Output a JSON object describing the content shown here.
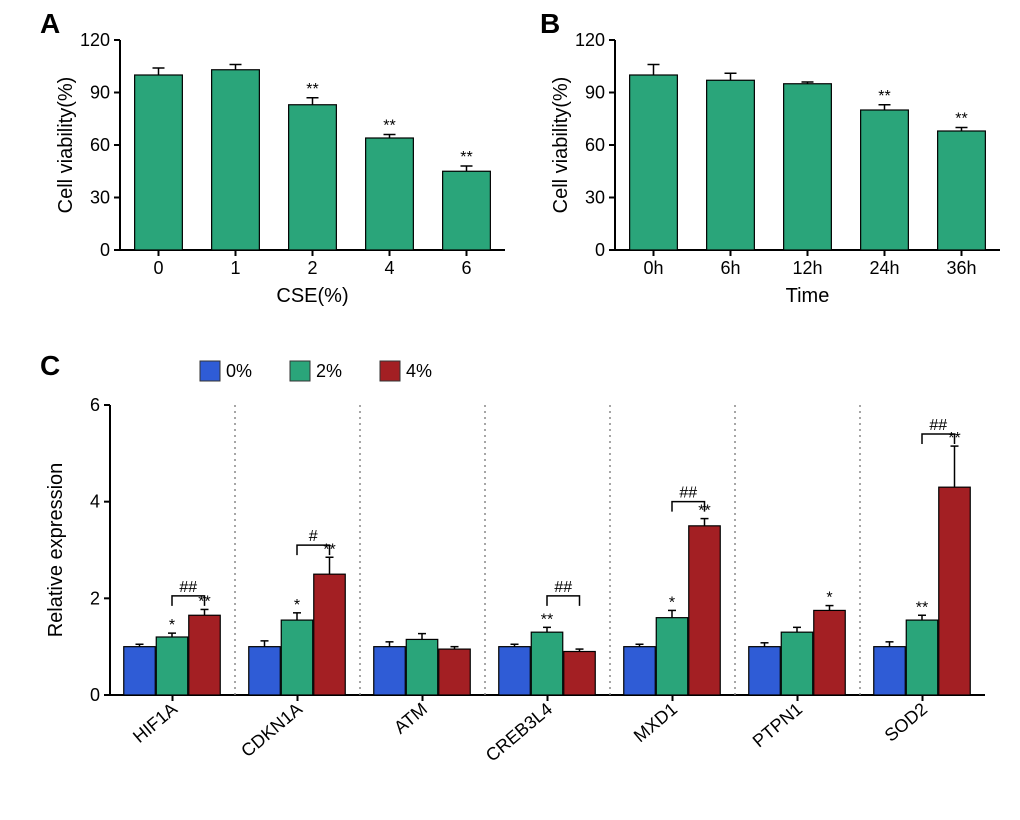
{
  "panelA": {
    "label": "A",
    "type": "bar",
    "ylabel": "Cell viability(%)",
    "xlabel": "CSE(%)",
    "ylim": [
      0,
      120
    ],
    "ytick_step": 30,
    "categories": [
      "0",
      "1",
      "2",
      "4",
      "6"
    ],
    "values": [
      100,
      103,
      83,
      64,
      45
    ],
    "errors": [
      4,
      3,
      4,
      2,
      3
    ],
    "bar_color": "#2aa57a",
    "bar_width": 0.62,
    "annotations": [
      "",
      "",
      "**",
      "**",
      "**"
    ],
    "label_fontsize": 20,
    "tick_fontsize": 18
  },
  "panelB": {
    "label": "B",
    "type": "bar",
    "ylabel": "Cell viability(%)",
    "xlabel": "Time",
    "ylim": [
      0,
      120
    ],
    "ytick_step": 30,
    "categories": [
      "0h",
      "6h",
      "12h",
      "24h",
      "36h"
    ],
    "values": [
      100,
      97,
      95,
      80,
      68
    ],
    "errors": [
      6,
      4,
      1,
      3,
      2
    ],
    "bar_color": "#2aa57a",
    "bar_width": 0.62,
    "annotations": [
      "",
      "",
      "",
      "**",
      "**"
    ],
    "label_fontsize": 20,
    "tick_fontsize": 18
  },
  "panelC": {
    "label": "C",
    "type": "grouped-bar",
    "ylabel": "Relative expression",
    "ylim": [
      0,
      6
    ],
    "ytick_step": 2,
    "groups": [
      "HIF1A",
      "CDKN1A",
      "ATM",
      "CREB3L4",
      "MXD1",
      "PTPN1",
      "SOD2"
    ],
    "series": [
      {
        "name": "0%",
        "color": "#2f5cd6"
      },
      {
        "name": "2%",
        "color": "#2aa57a"
      },
      {
        "name": "4%",
        "color": "#a31f23"
      }
    ],
    "legend_labels": [
      "0%",
      "2%",
      "4%"
    ],
    "data": {
      "HIF1A": {
        "vals": [
          1.0,
          1.2,
          1.65
        ],
        "errs": [
          0.05,
          0.08,
          0.12
        ],
        "annots": [
          "",
          "*",
          "**"
        ],
        "bracket": {
          "from": 1,
          "to": 2,
          "label": "##",
          "y": 2.05
        }
      },
      "CDKN1A": {
        "vals": [
          1.0,
          1.55,
          2.5
        ],
        "errs": [
          0.12,
          0.15,
          0.35
        ],
        "annots": [
          "",
          "*",
          "**"
        ],
        "bracket": {
          "from": 1,
          "to": 2,
          "label": "#",
          "y": 3.1
        }
      },
      "ATM": {
        "vals": [
          1.0,
          1.15,
          0.95
        ],
        "errs": [
          0.1,
          0.12,
          0.05
        ],
        "annots": [
          "",
          "",
          ""
        ]
      },
      "CREB3L4": {
        "vals": [
          1.0,
          1.3,
          0.9
        ],
        "errs": [
          0.05,
          0.1,
          0.05
        ],
        "annots": [
          "",
          "**",
          ""
        ],
        "bracket": {
          "from": 1,
          "to": 2,
          "label": "##",
          "y": 2.05
        }
      },
      "MXD1": {
        "vals": [
          1.0,
          1.6,
          3.5
        ],
        "errs": [
          0.05,
          0.15,
          0.15
        ],
        "annots": [
          "",
          "*",
          "**"
        ],
        "bracket": {
          "from": 1,
          "to": 2,
          "label": "##",
          "y": 4.0
        }
      },
      "PTPN1": {
        "vals": [
          1.0,
          1.3,
          1.75
        ],
        "errs": [
          0.08,
          0.1,
          0.1
        ],
        "annots": [
          "",
          "",
          "*"
        ]
      },
      "SOD2": {
        "vals": [
          1.0,
          1.55,
          4.3
        ],
        "errs": [
          0.1,
          0.1,
          0.85
        ],
        "annots": [
          "",
          "**",
          "**"
        ],
        "bracket": {
          "from": 1,
          "to": 2,
          "label": "##",
          "y": 5.4
        }
      }
    },
    "bar_width": 0.26,
    "label_fontsize": 20,
    "tick_fontsize": 18,
    "group_label_rotate": -40
  },
  "colors": {
    "background": "#ffffff",
    "axis": "#000000"
  }
}
